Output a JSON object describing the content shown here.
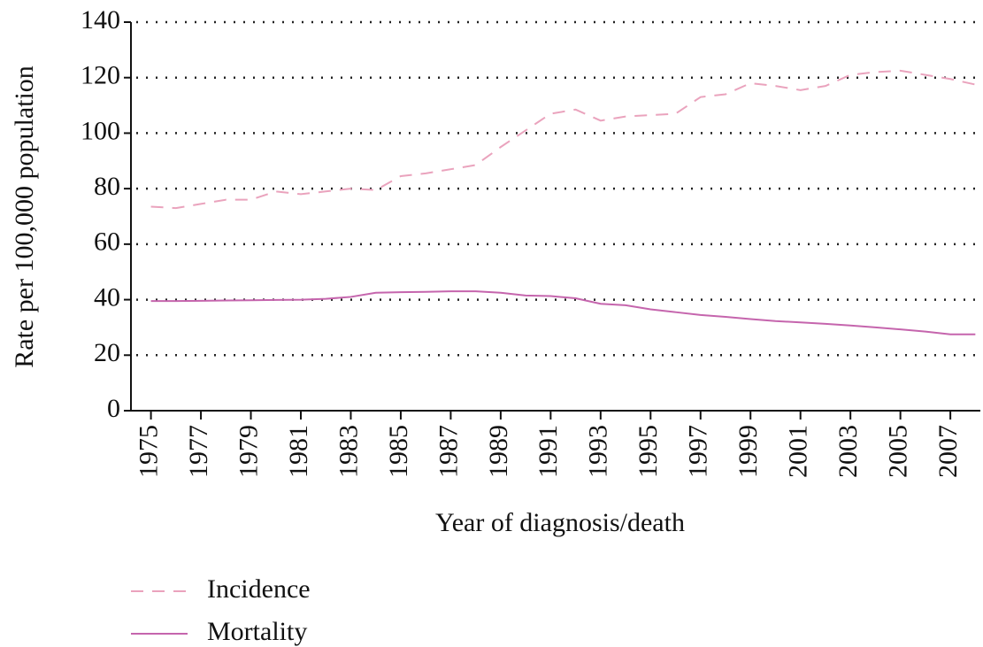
{
  "chart_data": {
    "type": "line",
    "x_label": "Year of diagnosis/death",
    "y_label": "Rate per 100,000 population",
    "x": [
      1975,
      1976,
      1977,
      1978,
      1979,
      1980,
      1981,
      1982,
      1983,
      1984,
      1985,
      1986,
      1987,
      1988,
      1989,
      1990,
      1991,
      1992,
      1993,
      1994,
      1995,
      1996,
      1997,
      1998,
      1999,
      2000,
      2001,
      2002,
      2003,
      2004,
      2005,
      2006,
      2007,
      2008
    ],
    "series": [
      {
        "name": "Incidence",
        "color": "#eaa3bd",
        "linestyle": "dashed",
        "values": [
          73.5,
          73,
          74.5,
          76,
          76,
          79,
          78,
          79,
          80,
          79.5,
          84.5,
          85.5,
          87,
          88.5,
          95,
          101,
          107,
          108.5,
          104.5,
          106,
          106.5,
          107,
          113,
          114,
          118,
          117,
          115.5,
          117,
          121,
          122,
          122.5,
          121,
          119.5,
          117.5
        ]
      },
      {
        "name": "Mortality",
        "color": "#c565ad",
        "linestyle": "solid",
        "values": [
          39.5,
          39.5,
          39.6,
          39.7,
          39.8,
          39.9,
          40,
          40.3,
          41,
          42.5,
          42.7,
          42.8,
          43,
          43,
          42.5,
          41.5,
          41.3,
          40.5,
          38.5,
          38,
          36.5,
          35.5,
          34.5,
          33.8,
          33,
          32.3,
          31.8,
          31.3,
          30.7,
          30,
          29.3,
          28.5,
          27.5,
          27.5
        ]
      }
    ],
    "xlim": [
      1974.2,
      2008.2
    ],
    "xticks": [
      1975,
      1977,
      1979,
      1981,
      1983,
      1985,
      1987,
      1989,
      1991,
      1993,
      1995,
      1997,
      1999,
      2001,
      2003,
      2005,
      2007
    ],
    "ylim": [
      0,
      140
    ],
    "yticks": [
      0,
      20,
      40,
      60,
      80,
      100,
      120,
      140
    ],
    "grid": true
  }
}
